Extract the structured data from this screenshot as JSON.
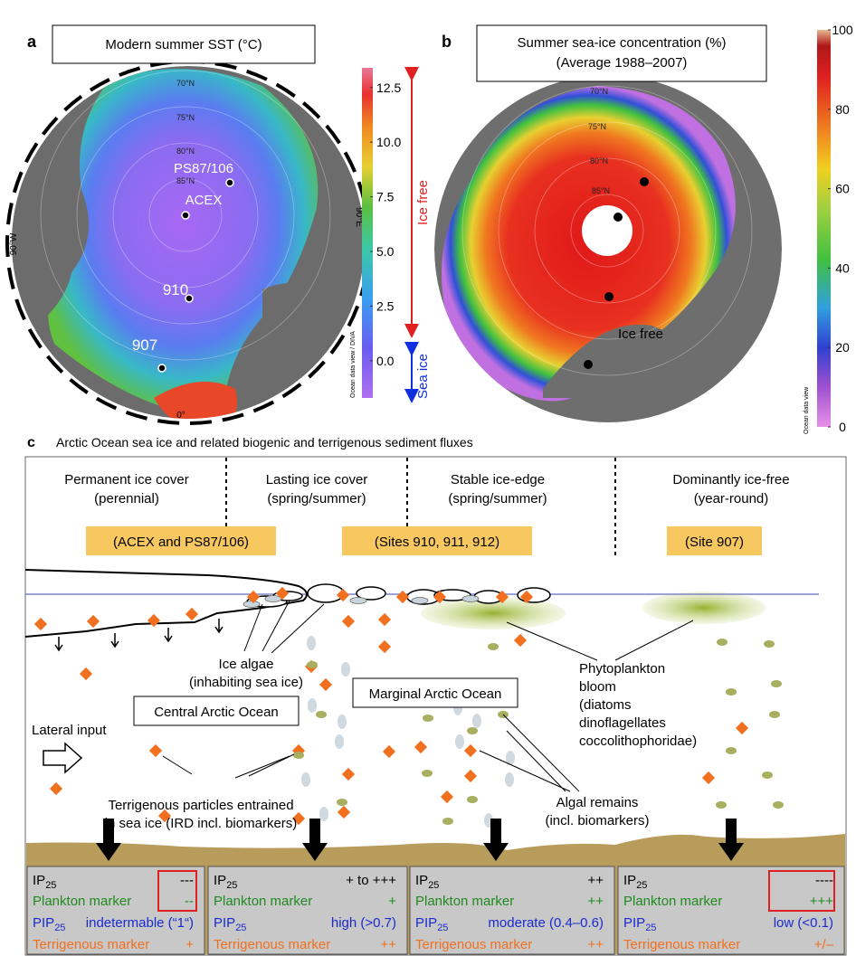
{
  "panel_a": {
    "label": "a",
    "title": "Modern summer  SST (°C)",
    "colorbar": {
      "lim": [
        -1.7,
        13.4
      ],
      "ticks": [
        {
          "value": 0,
          "label": "0.0"
        },
        2.5,
        {
          "value": 5,
          "label": "5.0"
        },
        7.5,
        {
          "value": 10,
          "label": "10.0"
        },
        12.5
      ],
      "credit": "Ocean data view / DIVA"
    },
    "grid_labels": [
      "70°N",
      "75°N",
      "80°N",
      "85°N",
      "90°E",
      "90°W",
      "0°"
    ],
    "sites": [
      "PS87/106",
      "ACEX",
      "910",
      "907"
    ],
    "ice_free": "Ice free",
    "sea_ice": "Sea ice"
  },
  "panel_b": {
    "label": "b",
    "title": "Summer sea-ice concentration (%)",
    "subtitle": "(Average 1988–2007)",
    "colorbar": {
      "lim": [
        0,
        100
      ],
      "ticks": [
        0,
        20,
        40,
        60,
        80,
        100
      ],
      "credit": "Ocean data view"
    },
    "grid_labels": [
      "70°N",
      "75°N",
      "80°N",
      "85°N"
    ],
    "ice_free": "Ice free"
  },
  "panel_c": {
    "label": "c",
    "title": "Arctic Ocean sea ice and related biogenic and terrigenous sediment fluxes",
    "zones": [
      {
        "name": "Permanent ice cover",
        "period": "(perennial)",
        "sites": "(ACEX and PS87/106)"
      },
      {
        "name": "Lasting ice cover",
        "period": "(spring/summer)",
        "sites": "(Sites 910, 911, 912)"
      },
      {
        "name": "Stable ice-edge",
        "period": "(spring/summer)",
        "sites": null
      },
      {
        "name": "Dominantly ice-free",
        "period": "(year-round)",
        "sites": "(Site 907)"
      }
    ],
    "ice_algae": [
      "Ice algae",
      "(inhabiting sea ice)"
    ],
    "central": "Central Arctic Ocean",
    "marginal": "Marginal Arctic Ocean",
    "lateral": "Lateral input",
    "terrigenous_particles": [
      "Terrigenous particles entrained",
      "in sea ice (IRD incl. biomarkers)"
    ],
    "phytoplankton": [
      "Phytoplankton",
      "bloom",
      "(diatoms",
      "dinoflagellates",
      "coccolithophoridae)"
    ],
    "algal_remains": [
      "Algal remains",
      "(incl. biomarkers)"
    ],
    "markers": {
      "ip": "IP",
      "ip_sub": "25",
      "plankton": "Plankton marker",
      "pip": "PIP",
      "pip_sub": "25",
      "terrigenous": "Terrigenous marker"
    },
    "columns": [
      {
        "ip": "---",
        "plankton": "--",
        "pip": "indetermable (“1“)",
        "terrigenous": "+"
      },
      {
        "ip": "+ to  +++",
        "plankton": "+",
        "pip": "high (>0.7)",
        "terrigenous": "++"
      },
      {
        "ip": "++",
        "plankton": "++",
        "pip": "moderate (0.4–0.6)",
        "terrigenous": "++"
      },
      {
        "ip": "----",
        "plankton": "+++",
        "pip": "low (<0.1)",
        "terrigenous": "+/–"
      }
    ]
  }
}
